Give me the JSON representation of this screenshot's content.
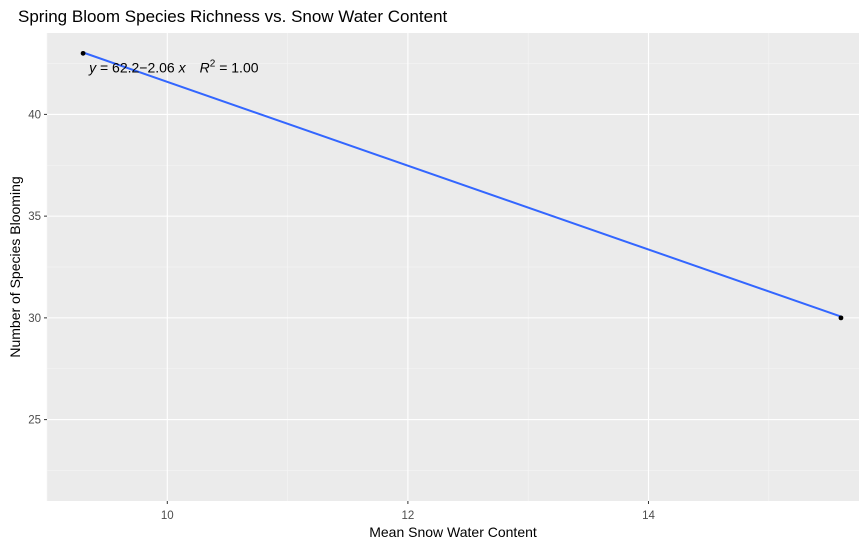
{
  "chart_data": {
    "type": "scatter",
    "title": "Spring Bloom Species Richness vs. Snow Water Content",
    "xlabel": "Mean Snow Water Content",
    "ylabel": "Number of Species Blooming",
    "xlim": [
      9.0,
      15.75
    ],
    "ylim": [
      21.0,
      44.0
    ],
    "x_ticks": [
      10,
      12,
      14
    ],
    "x_tick_labels": [
      "10",
      "12",
      "14"
    ],
    "x_minor_ticks": [
      9,
      11,
      13,
      15
    ],
    "y_ticks": [
      25,
      30,
      35,
      40
    ],
    "y_tick_labels": [
      "25",
      "30",
      "35",
      "40"
    ],
    "y_minor_ticks": [
      22.5,
      27.5,
      32.5,
      37.5,
      42.5
    ],
    "points": [
      {
        "x": 9.3,
        "y": 43
      },
      {
        "x": 15.6,
        "y": 30
      }
    ],
    "fit_line": {
      "intercept": 62.2,
      "slope": -2.06,
      "x_range": [
        9.3,
        15.6
      ],
      "color": "#3366ff"
    },
    "annotation": {
      "y_symbol": "y",
      "eq_rest": " = 62.2−2.06 ",
      "x_symbol": "x",
      "r_symbol": "R",
      "r_exponent": "2",
      "r_value": " = 1.00",
      "x": 9.35,
      "y": 42.3
    },
    "grid": true,
    "legend": "none",
    "colors": {
      "panel_background": "#ebebeb",
      "grid_major": "#ffffff",
      "grid_minor": "#f5f5f5",
      "point": "#000000",
      "line": "#3366ff"
    }
  }
}
